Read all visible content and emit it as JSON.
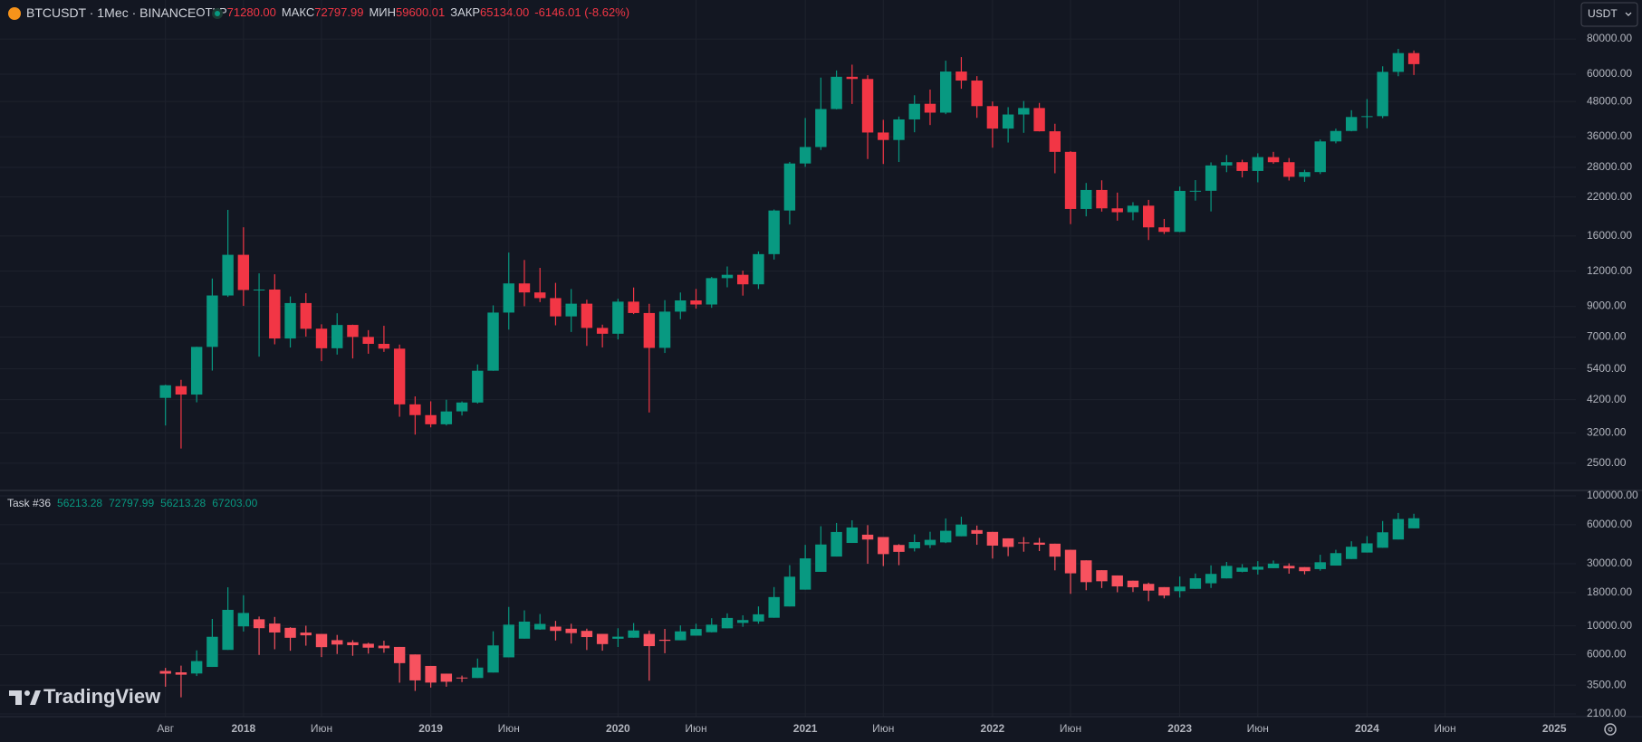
{
  "chart_data": [
    {
      "type": "candlestick",
      "title": "BTCUSDT · 1Мес · BINANCE",
      "legend_labels": [
        "ОТКР",
        "МАКС",
        "МИН",
        "ЗАКР"
      ],
      "legend_values": [
        "71280.00",
        "72797.99",
        "59600.01",
        "65134.00"
      ],
      "change": "-6146.01 (-8.62%)",
      "log_scale": true,
      "grid": true,
      "up_color": "#089981",
      "down_color": "#f23645",
      "categories": [
        "Авг",
        null,
        null,
        null,
        null,
        "2018",
        null,
        null,
        null,
        null,
        "Июн",
        null,
        null,
        null,
        null,
        null,
        null,
        "2019",
        null,
        null,
        null,
        null,
        "Июн",
        null,
        null,
        null,
        null,
        null,
        null,
        "2020",
        null,
        null,
        null,
        null,
        "Июн",
        null,
        null,
        null,
        null,
        null,
        null,
        "2021",
        null,
        null,
        null,
        null,
        "Июн",
        null,
        null,
        null,
        null,
        null,
        null,
        "2022",
        null,
        null,
        null,
        null,
        "Июн",
        null,
        null,
        null,
        null,
        null,
        null,
        "2023",
        null,
        null,
        null,
        null,
        "Июн",
        null,
        null,
        null,
        null,
        null,
        null,
        "2024",
        null,
        null,
        null,
        null,
        "Июн",
        null,
        null,
        null,
        null,
        null,
        null,
        "2025"
      ],
      "open": [
        4261,
        4689,
        4378,
        6463,
        9837,
        13715,
        10285,
        10326,
        6922,
        9246,
        7500,
        6391,
        7735,
        7011,
        6626,
        6370,
        4041,
        3701,
        3434,
        3817,
        4102,
        5321,
        8555,
        10855,
        10085,
        9630,
        8292,
        9199,
        7547,
        7196,
        9352,
        8523,
        6412,
        8620,
        9448,
        9138,
        11335,
        11649,
        10776,
        13791,
        19695,
        28924,
        33092,
        45134,
        58739,
        57697,
        37254,
        35044,
        41461,
        47100,
        43820,
        61300,
        56951,
        46217,
        38466,
        43160,
        45510,
        37630,
        31801,
        19942,
        23296,
        20048,
        19422,
        20490,
        17165,
        16541,
        23125,
        23141,
        28465,
        29233,
        27210,
        30471,
        29232,
        25941,
        26962,
        34640,
        37723,
        42283,
        42582,
        61130,
        71280,
        null,
        null,
        null,
        null,
        null,
        null,
        null,
        null,
        null
      ],
      "high": [
        4745,
        4939,
        6470,
        11300,
        19798,
        17176,
        11786,
        11700,
        9759,
        10020,
        7775,
        8507,
        7750,
        7410,
        7680,
        6586,
        4312,
        4143,
        4198,
        4140,
        5600,
        9074,
        13971,
        13147,
        12326,
        10905,
        10370,
        9505,
        7750,
        9578,
        10500,
        9189,
        9468,
        10080,
        10380,
        11444,
        12468,
        12050,
        14100,
        19863,
        29300,
        41950,
        58352,
        61844,
        64854,
        59500,
        41330,
        42448,
        50500,
        52920,
        67000,
        69000,
        59053,
        48000,
        45821,
        48190,
        47444,
        40023,
        31982,
        24668,
        25211,
        22799,
        21085,
        21480,
        18387,
        23960,
        25250,
        29184,
        31000,
        29820,
        31431,
        31804,
        30244,
        27483,
        35198,
        38450,
        44700,
        48969,
        64000,
        73777,
        72797.99,
        null,
        null,
        null,
        null,
        null,
        null,
        null,
        null,
        null
      ],
      "low": [
        3400,
        2817,
        4110,
        5325,
        9722,
        9035,
        5968,
        6600,
        6430,
        7032,
        5750,
        6070,
        5880,
        6111,
        6205,
        3652,
        3156,
        3349,
        3401,
        3689,
        4067,
        5316,
        7444,
        9010,
        9320,
        7710,
        7300,
        6515,
        6435,
        6871,
        8450,
        3782,
        6150,
        8106,
        8833,
        8893,
        10518,
        9825,
        10374,
        13195,
        17572,
        28130,
        32296,
        45000,
        47044,
        30000,
        28805,
        29278,
        37332,
        39600,
        43283,
        53256,
        42000,
        32917,
        34322,
        37155,
        37578,
        26700,
        17622,
        18782,
        19520,
        18125,
        18190,
        15476,
        16256,
        16499,
        21351,
        19549,
        26942,
        25811,
        24800,
        28861,
        25166,
        24901,
        26538,
        34097,
        37615,
        38555,
        41884,
        59005,
        59600.01,
        null,
        null,
        null,
        null,
        null,
        null,
        null,
        null,
        null
      ],
      "close": [
        4724,
        4379,
        6463,
        9838,
        13716,
        10285,
        10326,
        6923,
        9246,
        7494,
        6391,
        7730,
        7011,
        6626,
        6372,
        4041,
        3702,
        3434,
        3814,
        4103,
        5320,
        8555,
        10855,
        10085,
        9630,
        8293,
        9199,
        7546,
        7195,
        9353,
        8523,
        6410,
        8621,
        9448,
        9138,
        11335,
        11649,
        10776,
        13791,
        19695,
        28923,
        33092,
        45135,
        58740,
        57694,
        37253,
        35045,
        41461,
        47100,
        43824,
        61300,
        56950,
        46217,
        38467,
        43160,
        45510,
        37630,
        31801,
        19942,
        23293,
        20050,
        19422,
        20491,
        17164,
        16542,
        23125,
        23141,
        28465,
        29233,
        27210,
        30472,
        29232,
        25941,
        26962,
        34639,
        37723,
        42283,
        42582,
        61130,
        71280,
        65134,
        null,
        null,
        null,
        null,
        null,
        null,
        null,
        null,
        null
      ],
      "ylim": [
        2000,
        110000
      ],
      "yticks": [
        {
          "value": 2500,
          "label": "2500.00"
        },
        {
          "value": 3200,
          "label": "3200.00"
        },
        {
          "value": 4200,
          "label": "4200.00"
        },
        {
          "value": 5400,
          "label": "5400.00"
        },
        {
          "value": 7000,
          "label": "7000.00"
        },
        {
          "value": 9000,
          "label": "9000.00"
        },
        {
          "value": 12000,
          "label": "12000.00"
        },
        {
          "value": 16000,
          "label": "16000.00"
        },
        {
          "value": 22000,
          "label": "22000.00"
        },
        {
          "value": 28000,
          "label": "28000.00"
        },
        {
          "value": 36000,
          "label": "36000.00"
        },
        {
          "value": 48000,
          "label": "48000.00"
        },
        {
          "value": 60000,
          "label": "60000.00"
        },
        {
          "value": 80000,
          "label": "80000.00"
        }
      ]
    },
    {
      "type": "candlestick",
      "title": "Task #36",
      "legend_values": [
        "56213.28",
        "72797.99",
        "56213.28",
        "67203.00"
      ],
      "log_scale": true,
      "grid": true,
      "up_color": "#089981",
      "down_color": "#f7525f",
      "open": [
        4492,
        4387,
        4296,
        4826,
        6529,
        9899,
        11226,
        10409,
        9648,
        8869,
        8659,
        7757,
        7466,
        7280,
        7035,
        6878,
        6020,
        4912,
        4285,
        3999,
        3968,
        4370,
        5719,
        7963,
        9369,
        9855,
        9495,
        9143,
        8667,
        7950,
        8100,
        8653,
        7815,
        7739,
        8402,
        8926,
        9565,
        10529,
        10802,
        11531,
        14084,
        18979,
        26002,
        34111,
        43396,
        50240,
        48177,
        41893,
        39476,
        41787,
        43824,
        48838,
        54483,
        52769,
        47085,
        43764,
        43634,
        42838,
        38439,
        31888,
        26780,
        24400,
        22250,
        21024,
        19839,
        18464,
        19248,
        21233,
        23159,
        26035,
        27027,
        27753,
        28923,
        28285,
        27304,
        29069,
        32649,
        36615,
        39856,
        46128,
        56213.28,
        null,
        null,
        null,
        null,
        null,
        null,
        null,
        null,
        null
      ],
      "high": [
        4745,
        4939,
        6470,
        11300,
        19798,
        17176,
        11786,
        11700,
        9759,
        10020,
        8659,
        8507,
        7750,
        7410,
        7680,
        6878,
        6020,
        4912,
        4285,
        4140,
        5600,
        9074,
        13971,
        13147,
        12326,
        10905,
        10370,
        9505,
        8667,
        9578,
        10500,
        9189,
        9468,
        10080,
        10380,
        11444,
        12468,
        12050,
        14100,
        19863,
        29300,
        41950,
        58352,
        61844,
        64854,
        59500,
        48177,
        42448,
        50500,
        52920,
        67000,
        69000,
        59053,
        52769,
        47085,
        48190,
        47444,
        42838,
        38439,
        31888,
        26780,
        24400,
        22250,
        21480,
        19839,
        23960,
        25250,
        29184,
        31000,
        29820,
        31431,
        31804,
        30244,
        28285,
        35198,
        38450,
        44700,
        48969,
        64000,
        73777,
        72797.99,
        null,
        null,
        null,
        null,
        null,
        null,
        null,
        null,
        null
      ],
      "low": [
        3400,
        2817,
        4110,
        4826,
        6529,
        9035,
        5968,
        6600,
        6430,
        7032,
        5750,
        6070,
        5880,
        6111,
        6205,
        3652,
        3156,
        3349,
        3401,
        3689,
        3968,
        4370,
        5719,
        7963,
        9320,
        7710,
        7300,
        6515,
        6435,
        6871,
        8100,
        3782,
        6150,
        7739,
        8402,
        8893,
        9565,
        9825,
        10374,
        11531,
        14084,
        18979,
        26002,
        34111,
        43396,
        30000,
        28805,
        29278,
        37332,
        39600,
        43283,
        48838,
        42000,
        32917,
        34322,
        37155,
        37578,
        26700,
        17622,
        18782,
        19520,
        18125,
        18190,
        15476,
        16256,
        16499,
        19248,
        19549,
        23159,
        25811,
        24800,
        27753,
        25166,
        24901,
        26538,
        29069,
        32649,
        36615,
        39856,
        46128,
        56213.28,
        null,
        null,
        null,
        null,
        null,
        null,
        null,
        null,
        null
      ],
      "close": [
        4282,
        4206,
        5355,
        8232,
        13268,
        12553,
        9591,
        8887,
        8089,
        8448,
        6854,
        7175,
        7094,
        6790,
        6721,
        5162,
        3803,
        3657,
        3712,
        3937,
        4772,
        7067,
        10206,
        10774,
        10340,
        9135,
        8790,
        8191,
        7232,
        8250,
        9206,
        6976,
        7663,
        9064,
        9450,
        10203,
        11493,
        11075,
        12260,
        16636,
        23873,
        33024,
        42219,
        52680,
        57083,
        46113,
        35609,
        37058,
        44098,
        45861,
        53851,
        60127,
        51055,
        41400,
        40442,
        43504,
        42041,
        34039,
        25337,
        21671,
        22019,
        20099,
        19797,
        18653,
        17088,
        20031,
        23217,
        25085,
        28910,
        28019,
        28478,
        30092,
        27646,
        26322,
        30834,
        36228,
        40580,
        43097,
        52399,
        66298,
        67203,
        null,
        null,
        null,
        null,
        null,
        null,
        null,
        null,
        null
      ],
      "ylim": [
        2000,
        110000
      ],
      "yticks": [
        {
          "value": 2100,
          "label": "2100.00"
        },
        {
          "value": 3500,
          "label": "3500.00"
        },
        {
          "value": 6000,
          "label": "6000.00"
        },
        {
          "value": 10000,
          "label": "10000.00"
        },
        {
          "value": 18000,
          "label": "18000.00"
        },
        {
          "value": 30000,
          "label": "30000.00"
        },
        {
          "value": 60000,
          "label": "60000.00"
        },
        {
          "value": 100000,
          "label": "100000.00"
        }
      ]
    }
  ],
  "ui": {
    "currency_button": "USDT",
    "watermark": "TradingView"
  }
}
